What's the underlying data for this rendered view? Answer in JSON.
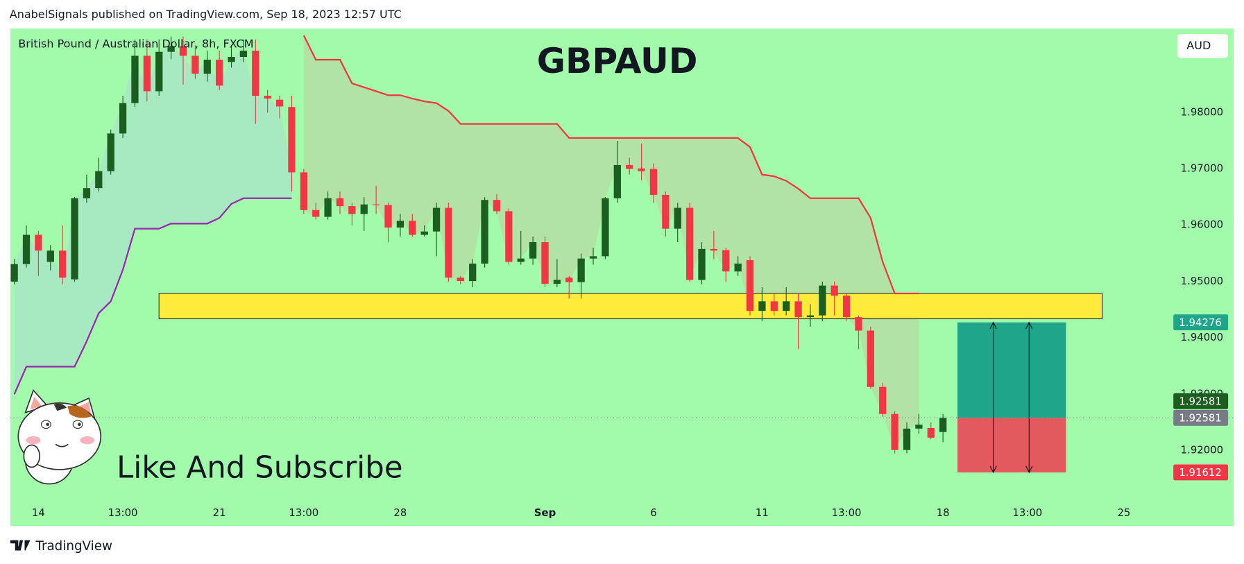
{
  "header": "AnabelSignals published on TradingView.com, Sep 18, 2023 12:57 UTC",
  "footer": "TradingView",
  "caption": "Like And Subscribe",
  "chart_data": {
    "type": "candlestick",
    "title": "GBPAUD",
    "subtitle": "British Pound / Australian Dollar, 8h, FXCM",
    "currency": "AUD",
    "up_color": "#1b5e20",
    "down_color": "#f23645",
    "open": [
      1.95,
      1.9531,
      1.9583,
      1.9535,
      1.9555,
      1.9504,
      1.9648,
      1.9666,
      1.9696,
      1.9763,
      1.9817,
      1.9901,
      1.9838,
      1.9908,
      1.9918,
      1.9901,
      1.9869,
      1.9894,
      1.989,
      1.9899,
      1.991,
      1.983,
      1.9823,
      1.981,
      1.9694,
      1.9627,
      1.9615,
      1.9648,
      1.9634,
      1.962,
      1.9637,
      1.9636,
      1.9596,
      1.9608,
      1.9583,
      1.9589,
      1.9631,
      1.9507,
      1.9501,
      1.9532,
      1.9645,
      1.9625,
      1.9535,
      1.9541,
      1.957,
      1.9496,
      1.9507,
      1.9499,
      1.9541,
      1.9545,
      1.9648,
      1.9707,
      1.9701,
      1.97,
      1.9654,
      1.9594,
      1.9631,
      1.9503,
      1.9558,
      1.9556,
      1.9518,
      1.9538,
      1.9448,
      1.9465,
      1.9448,
      1.9465,
      1.9437,
      1.944,
      1.9493,
      1.9475,
      1.9437,
      1.9413,
      1.9313,
      1.9265,
      1.9201,
      1.9239,
      1.924,
      1.9233
    ],
    "high": [
      1.954,
      1.96,
      1.959,
      1.9565,
      1.96,
      1.965,
      1.969,
      1.972,
      1.977,
      1.983,
      1.993,
      1.993,
      1.993,
      1.9935,
      1.9935,
      1.992,
      1.991,
      1.991,
      1.992,
      1.993,
      1.993,
      1.984,
      1.983,
      1.983,
      1.97,
      1.964,
      1.966,
      1.966,
      1.964,
      1.965,
      1.967,
      1.964,
      1.962,
      1.962,
      1.96,
      1.964,
      1.964,
      1.951,
      1.954,
      1.965,
      1.9655,
      1.963,
      1.959,
      1.958,
      1.958,
      1.954,
      1.951,
      1.955,
      1.956,
      1.965,
      1.975,
      1.972,
      1.9745,
      1.971,
      1.966,
      1.964,
      1.964,
      1.957,
      1.959,
      1.956,
      1.9545,
      1.9545,
      1.949,
      1.948,
      1.949,
      1.948,
      1.946,
      1.95,
      1.95,
      1.948,
      1.944,
      1.942,
      1.932,
      1.927,
      1.925,
      1.9265,
      1.925,
      1.9265
    ],
    "low": [
      1.9495,
      1.9525,
      1.951,
      1.952,
      1.9495,
      1.95,
      1.964,
      1.966,
      1.969,
      1.9755,
      1.981,
      1.982,
      1.983,
      1.9895,
      1.985,
      1.986,
      1.9855,
      1.984,
      1.988,
      1.989,
      1.978,
      1.98,
      1.979,
      1.966,
      1.962,
      1.961,
      1.961,
      1.962,
      1.96,
      1.959,
      1.962,
      1.957,
      1.958,
      1.958,
      1.958,
      1.9545,
      1.95,
      1.9495,
      1.949,
      1.9525,
      1.962,
      1.953,
      1.953,
      1.953,
      1.949,
      1.949,
      1.947,
      1.947,
      1.953,
      1.954,
      1.964,
      1.969,
      1.968,
      1.964,
      1.958,
      1.957,
      1.95,
      1.9495,
      1.954,
      1.95,
      1.951,
      1.944,
      1.943,
      1.944,
      1.944,
      1.938,
      1.942,
      1.943,
      1.944,
      1.943,
      1.938,
      1.931,
      1.926,
      1.9195,
      1.9195,
      1.923,
      1.922,
      1.9215
    ],
    "close": [
      1.9531,
      1.9583,
      1.9555,
      1.9555,
      1.9507,
      1.9648,
      1.9666,
      1.9696,
      1.9763,
      1.9817,
      1.9901,
      1.9838,
      1.9908,
      1.9918,
      1.9901,
      1.9869,
      1.9894,
      1.9848,
      1.9899,
      1.991,
      1.983,
      1.9825,
      1.9811,
      1.9694,
      1.9627,
      1.9615,
      1.9648,
      1.9634,
      1.962,
      1.9637,
      1.9636,
      1.9596,
      1.9608,
      1.9583,
      1.9589,
      1.9631,
      1.9507,
      1.9501,
      1.9532,
      1.9645,
      1.9625,
      1.9535,
      1.9541,
      1.957,
      1.9496,
      1.9503,
      1.9499,
      1.9541,
      1.9545,
      1.9648,
      1.9707,
      1.97,
      1.9696,
      1.9654,
      1.9594,
      1.9631,
      1.9503,
      1.9558,
      1.9555,
      1.9518,
      1.9532,
      1.9448,
      1.9465,
      1.9448,
      1.9465,
      1.9437,
      1.944,
      1.9493,
      1.9475,
      1.9437,
      1.9413,
      1.9313,
      1.9265,
      1.9201,
      1.9239,
      1.9246,
      1.9223,
      1.92581
    ],
    "lower_band": {
      "color": "#9c27b0",
      "fill": "#a8e6c4",
      "values": [
        1.93,
        1.9349,
        1.9349,
        1.9349,
        1.9349,
        1.9349,
        1.9394,
        1.9444,
        1.9465,
        1.9521,
        1.9594,
        1.9594,
        1.9594,
        1.9603,
        1.9603,
        1.9603,
        1.9603,
        1.9613,
        1.9638,
        1.9648,
        1.9648,
        1.9648,
        1.9648,
        1.9648,
        null,
        null,
        null,
        null,
        null,
        null,
        null,
        null,
        null,
        null,
        null,
        null,
        null,
        null,
        null,
        null,
        null,
        null,
        null,
        null,
        null,
        null,
        null,
        null,
        null,
        null,
        null,
        null,
        null,
        null,
        null,
        null,
        null,
        null,
        null,
        null,
        null,
        null,
        null,
        null,
        null,
        null,
        null,
        null,
        null,
        null,
        null,
        null,
        null,
        null,
        null,
        null,
        null,
        null
      ]
    },
    "upper_band": {
      "color": "#f23645",
      "fill": "#b4dea2",
      "values": [
        null,
        null,
        null,
        null,
        null,
        null,
        null,
        null,
        null,
        null,
        null,
        null,
        null,
        null,
        null,
        null,
        null,
        null,
        null,
        null,
        null,
        null,
        null,
        null,
        1.9937,
        1.9894,
        1.9894,
        1.9894,
        1.9852,
        1.9845,
        1.9838,
        1.9831,
        1.9831,
        1.9825,
        1.982,
        1.9817,
        1.9803,
        1.978,
        1.978,
        1.978,
        1.978,
        1.978,
        1.978,
        1.978,
        1.978,
        1.978,
        1.9755,
        1.9755,
        1.9755,
        1.9755,
        1.9755,
        1.9755,
        1.9755,
        1.9755,
        1.9755,
        1.9755,
        1.9755,
        1.9755,
        1.9755,
        1.9755,
        1.9755,
        1.9739,
        1.969,
        1.9687,
        1.9679,
        1.9665,
        1.9648,
        1.9648,
        1.9648,
        1.9648,
        1.9648,
        1.9613,
        1.9535,
        1.9479,
        1.9479,
        1.9479,
        null,
        null
      ]
    },
    "zone": {
      "low": 1.9434,
      "high": 1.9479,
      "start": 12,
      "end": 90.2,
      "color": "#ffeb3b"
    },
    "position": {
      "start": 78.2,
      "end": 87.2,
      "take_profit": 1.94276,
      "entry": 1.92581,
      "stop_loss": 1.91612,
      "profit_color": "#1fa58a",
      "loss_color": "#e35a5e",
      "entry_color": "#787b86"
    },
    "xlim": [
      -0.33,
      101.1
    ],
    "ylim": [
      1.90662,
      1.99493
    ],
    "xticks": [
      {
        "value": 2,
        "label": "14"
      },
      {
        "value": 9,
        "label": "13:00"
      },
      {
        "value": 17,
        "label": "21"
      },
      {
        "value": 24,
        "label": "13:00"
      },
      {
        "value": 32,
        "label": "28"
      },
      {
        "value": 44,
        "label": "Sep"
      },
      {
        "value": 53,
        "label": "6"
      },
      {
        "value": 62,
        "label": "11"
      },
      {
        "value": 69,
        "label": "13:00"
      },
      {
        "value": 77,
        "label": "18"
      },
      {
        "value": 84,
        "label": "13:00"
      },
      {
        "value": 92,
        "label": "25"
      }
    ],
    "yticks": [
      {
        "value": 1.92,
        "label": "1.92000"
      },
      {
        "value": 1.93,
        "label": "1.93000"
      },
      {
        "value": 1.94,
        "label": "1.94000"
      },
      {
        "value": 1.95,
        "label": "1.95000"
      },
      {
        "value": 1.96,
        "label": "1.96000"
      },
      {
        "value": 1.97,
        "label": "1.97000"
      },
      {
        "value": 1.98,
        "label": "1.98000"
      }
    ],
    "grid": false,
    "background": "#a2fbab"
  }
}
